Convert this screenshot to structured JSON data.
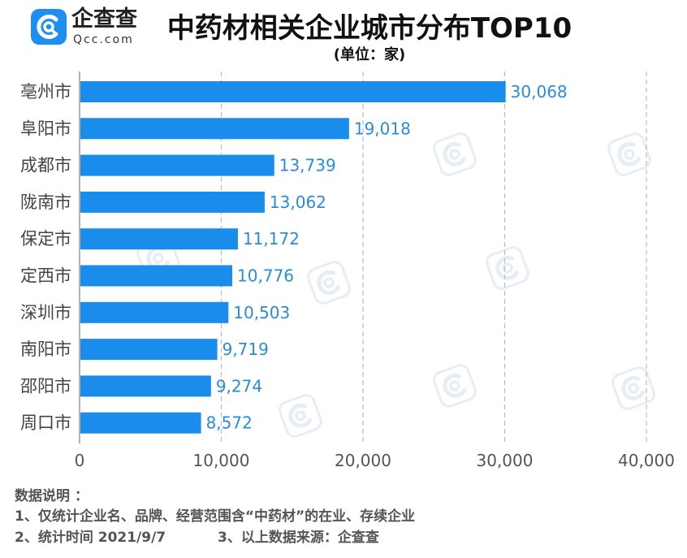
{
  "logo": {
    "icon": "qcc-logo-icon",
    "brand": "企查查",
    "domain": "Qcc.com"
  },
  "chart_data": {
    "type": "bar",
    "orientation": "horizontal",
    "title": "中药材相关企业城市分布TOP10",
    "subtitle": "(单位：家)",
    "categories": [
      "亳州市",
      "阜阳市",
      "成都市",
      "陇南市",
      "保定市",
      "定西市",
      "深圳市",
      "南阳市",
      "邵阳市",
      "周口市"
    ],
    "values": [
      30068,
      19018,
      13739,
      13062,
      11172,
      10776,
      10503,
      9719,
      9274,
      8572
    ],
    "x_ticks": [
      0,
      10000,
      20000,
      30000,
      40000
    ],
    "xlim": [
      0,
      40000
    ],
    "grid": true,
    "data_labels": true
  },
  "notes": {
    "heading": "数据说明 ：",
    "items": [
      "1、仅统计企业名、品牌、经营范围含“中药材”的在业、存续企业",
      "2、统计时间 2021/9/7",
      "3、以上数据来源：企查查"
    ]
  },
  "colors": {
    "brand": "#1e8ef0",
    "bar": "#1a8cec",
    "data_label": "#2a8bdc",
    "category_label": "#444444",
    "tick_label": "#555555",
    "gridline": "#bbbbbb",
    "axis": "#999999",
    "watermark": "#e6edf4"
  }
}
